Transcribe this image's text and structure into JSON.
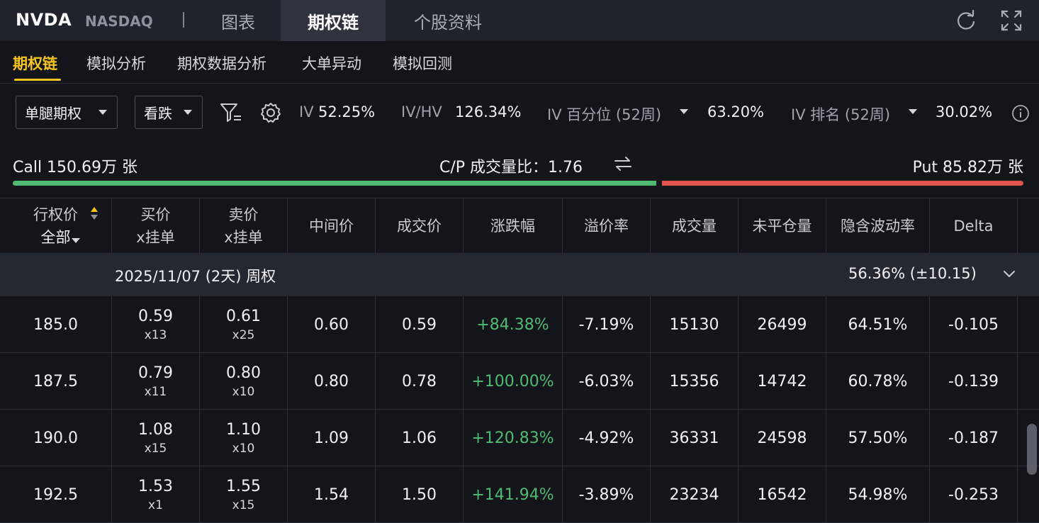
{
  "header": {
    "ticker": "NVDA",
    "exchange": "NASDAQ",
    "tabs": [
      "图表",
      "期权链",
      "个股资料"
    ],
    "active_tab": "期权链",
    "icons": [
      "refresh-icon",
      "fullscreen-icon"
    ]
  },
  "subtabs": [
    "期权链",
    "模拟分析",
    "期权数据分析",
    "大单异动",
    "模拟回测"
  ],
  "active_subtab": "期权链",
  "filters": {
    "strategy": "单腿期权",
    "direction": "看跌",
    "iv_label": "IV",
    "iv_value": "52.25%",
    "ivhv_label": "IV/HV",
    "ivhv_value": "126.34%",
    "iv_pct_label": "IV 百分位 (52周)",
    "iv_pct_value": "63.20%",
    "iv_rank_label": "IV 排名 (52周)",
    "iv_rank_value": "30.02%"
  },
  "ratio": {
    "call": "Call 150.69万 张",
    "cp": "C/P 成交量比：1.76",
    "put": "Put 85.82万 张",
    "call_fraction": 0.637
  },
  "table": {
    "headers": [
      {
        "line1": "行权价",
        "line2": "全部"
      },
      {
        "line1": "买价",
        "line2": "x挂单"
      },
      {
        "line1": "卖价",
        "line2": "x挂单"
      },
      {
        "line1": "中间价",
        "line2": ""
      },
      {
        "line1": "成交价",
        "line2": ""
      },
      {
        "line1": "涨跌幅",
        "line2": ""
      },
      {
        "line1": "溢价率",
        "line2": ""
      },
      {
        "line1": "成交量",
        "line2": ""
      },
      {
        "line1": "未平仓量",
        "line2": ""
      },
      {
        "line1": "隐含波动率",
        "line2": ""
      },
      {
        "line1": "Delta",
        "line2": ""
      }
    ],
    "group": {
      "label": "2025/11/07 (2天) 周权",
      "iv": "56.36%  (±10.15)"
    },
    "rows": [
      {
        "strike": "185.0",
        "bid": "0.59",
        "bid_size": "x13",
        "ask": "0.61",
        "ask_size": "x25",
        "mid": "0.60",
        "last": "0.59",
        "chg": "+84.38%",
        "premium": "-7.19%",
        "volume": "15130",
        "oi": "26499",
        "iv": "64.51%",
        "delta": "-0.105"
      },
      {
        "strike": "187.5",
        "bid": "0.79",
        "bid_size": "x11",
        "ask": "0.80",
        "ask_size": "x10",
        "mid": "0.80",
        "last": "0.78",
        "chg": "+100.00%",
        "premium": "-6.03%",
        "volume": "15356",
        "oi": "14742",
        "iv": "60.78%",
        "delta": "-0.139"
      },
      {
        "strike": "190.0",
        "bid": "1.08",
        "bid_size": "x15",
        "ask": "1.10",
        "ask_size": "x10",
        "mid": "1.09",
        "last": "1.06",
        "chg": "+120.83%",
        "premium": "-4.92%",
        "volume": "36331",
        "oi": "24598",
        "iv": "57.50%",
        "delta": "-0.187"
      },
      {
        "strike": "192.5",
        "bid": "1.53",
        "bid_size": "x1",
        "ask": "1.55",
        "ask_size": "x15",
        "mid": "1.54",
        "last": "1.50",
        "chg": "+141.94%",
        "premium": "-3.89%",
        "volume": "23234",
        "oi": "16542",
        "iv": "54.98%",
        "delta": "-0.253"
      }
    ]
  },
  "colors": {
    "up": "#4fbb71",
    "down": "#e2554e",
    "accent": "#f5c518"
  }
}
